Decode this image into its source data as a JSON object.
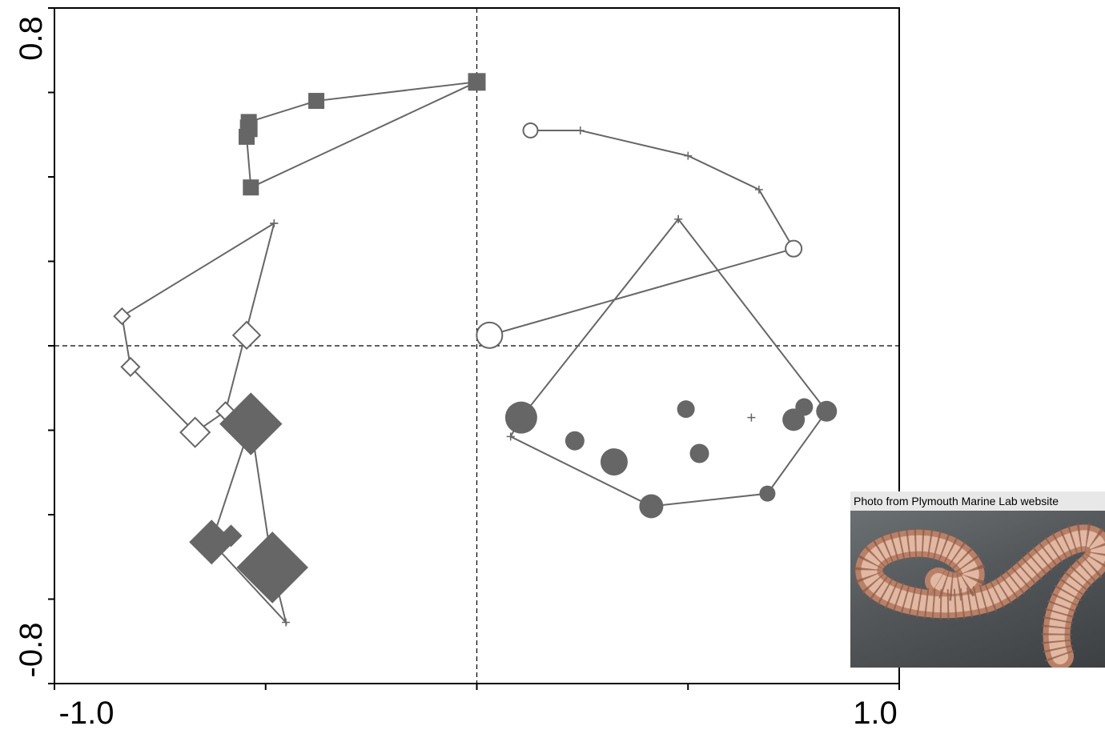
{
  "chart_data": {
    "type": "scatter",
    "title": "",
    "xlabel": "",
    "ylabel": "",
    "xlim": [
      -1.0,
      1.0
    ],
    "ylim": [
      -0.8,
      0.8
    ],
    "x_tick_labels": [
      "-1.0",
      "1.0"
    ],
    "y_tick_labels": [
      "0.8",
      "-0.8"
    ],
    "reference_lines": {
      "x": 0,
      "y": 0,
      "style": "dashed"
    },
    "grid": false,
    "legend": "none",
    "color": "#666666",
    "series": [
      {
        "marker": "filled-square",
        "points": [
          {
            "x": -0.54,
            "y": 0.53,
            "size": 1.0
          },
          {
            "x": -0.38,
            "y": 0.58,
            "size": 1.0
          },
          {
            "x": 0.0,
            "y": 0.625,
            "size": 1.1
          },
          {
            "x": -0.545,
            "y": 0.495,
            "size": 1.0
          },
          {
            "x": -0.54,
            "y": 0.515,
            "size": 1.1
          },
          {
            "x": -0.535,
            "y": 0.375,
            "size": 1.0
          }
        ],
        "hull": [
          {
            "x": -0.54,
            "y": 0.53
          },
          {
            "x": -0.38,
            "y": 0.58
          },
          {
            "x": 0.0,
            "y": 0.625
          },
          {
            "x": -0.535,
            "y": 0.375
          },
          {
            "x": -0.545,
            "y": 0.495
          }
        ]
      },
      {
        "marker": "open-circle",
        "points": [
          {
            "x": 0.127,
            "y": 0.51,
            "size": 0.9
          },
          {
            "x": 0.75,
            "y": 0.23,
            "size": 1.0
          },
          {
            "x": 0.03,
            "y": 0.025,
            "size": 1.6
          }
        ],
        "hull": [
          {
            "x": 0.127,
            "y": 0.51
          },
          {
            "x": 0.245,
            "y": 0.51
          },
          {
            "x": 0.5,
            "y": 0.45
          },
          {
            "x": 0.668,
            "y": 0.37
          },
          {
            "x": 0.75,
            "y": 0.23
          },
          {
            "x": 0.03,
            "y": 0.025
          }
        ]
      },
      {
        "marker": "open-diamond",
        "points": [
          {
            "x": -0.84,
            "y": 0.07,
            "size": 0.7
          },
          {
            "x": -0.82,
            "y": -0.05,
            "size": 0.8
          },
          {
            "x": -0.545,
            "y": 0.025,
            "size": 1.2
          },
          {
            "x": -0.595,
            "y": -0.155,
            "size": 0.8
          },
          {
            "x": -0.667,
            "y": -0.205,
            "size": 1.3
          }
        ],
        "hull": [
          {
            "x": -0.48,
            "y": 0.29
          },
          {
            "x": -0.84,
            "y": 0.07
          },
          {
            "x": -0.82,
            "y": -0.05
          },
          {
            "x": -0.667,
            "y": -0.205
          },
          {
            "x": -0.595,
            "y": -0.155
          },
          {
            "x": -0.48,
            "y": 0.29
          }
        ]
      },
      {
        "marker": "filled-diamond",
        "points": [
          {
            "x": -0.535,
            "y": -0.185,
            "size": 2.8
          },
          {
            "x": -0.628,
            "y": -0.465,
            "size": 2.0
          },
          {
            "x": -0.582,
            "y": -0.45,
            "size": 1.0
          },
          {
            "x": -0.484,
            "y": -0.525,
            "size": 3.2
          }
        ],
        "hull": [
          {
            "x": -0.535,
            "y": -0.185
          },
          {
            "x": -0.484,
            "y": -0.525
          },
          {
            "x": -0.452,
            "y": -0.655
          },
          {
            "x": -0.628,
            "y": -0.465
          },
          {
            "x": -0.535,
            "y": -0.185
          }
        ]
      },
      {
        "marker": "filled-circle",
        "points": [
          {
            "x": 0.105,
            "y": -0.17,
            "size": 2.0
          },
          {
            "x": 0.232,
            "y": -0.225,
            "size": 1.2
          },
          {
            "x": 0.325,
            "y": -0.275,
            "size": 1.7
          },
          {
            "x": 0.413,
            "y": -0.38,
            "size": 1.5
          },
          {
            "x": 0.688,
            "y": -0.35,
            "size": 1.0
          },
          {
            "x": 0.495,
            "y": -0.15,
            "size": 1.1
          },
          {
            "x": 0.527,
            "y": -0.255,
            "size": 1.2
          },
          {
            "x": 0.75,
            "y": -0.175,
            "size": 1.4
          },
          {
            "x": 0.775,
            "y": -0.145,
            "size": 1.1
          },
          {
            "x": 0.828,
            "y": -0.155,
            "size": 1.3
          }
        ],
        "hull": [
          {
            "x": 0.477,
            "y": 0.3
          },
          {
            "x": 0.105,
            "y": -0.17
          },
          {
            "x": 0.08,
            "y": -0.215
          },
          {
            "x": 0.413,
            "y": -0.38
          },
          {
            "x": 0.688,
            "y": -0.35
          },
          {
            "x": 0.828,
            "y": -0.155
          },
          {
            "x": 0.477,
            "y": 0.3
          }
        ]
      }
    ],
    "extra_markers": [
      {
        "x": 0.65,
        "y": -0.17,
        "marker": "plus"
      }
    ]
  },
  "photo": {
    "caption": "Photo from Plymouth Marine Lab website",
    "subject": "marine polychaete worm"
  }
}
